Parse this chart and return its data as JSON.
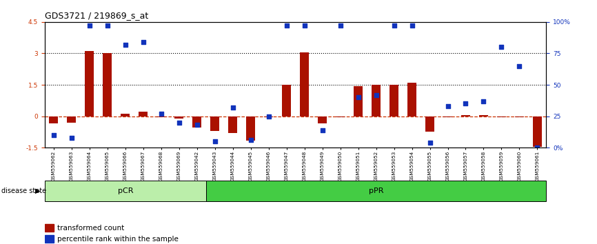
{
  "title": "GDS3721 / 219869_s_at",
  "samples": [
    "GSM559062",
    "GSM559063",
    "GSM559064",
    "GSM559065",
    "GSM559066",
    "GSM559067",
    "GSM559068",
    "GSM559069",
    "GSM559042",
    "GSM559043",
    "GSM559044",
    "GSM559045",
    "GSM559046",
    "GSM559047",
    "GSM559048",
    "GSM559049",
    "GSM559050",
    "GSM559051",
    "GSM559052",
    "GSM559053",
    "GSM559054",
    "GSM559055",
    "GSM559056",
    "GSM559057",
    "GSM559058",
    "GSM559059",
    "GSM559060",
    "GSM559061"
  ],
  "transformed_count": [
    -0.35,
    -0.3,
    3.1,
    3.0,
    0.12,
    0.22,
    -0.05,
    -0.1,
    -0.55,
    -0.7,
    -0.8,
    -1.15,
    -0.05,
    1.5,
    3.05,
    -0.35,
    -0.05,
    1.45,
    1.5,
    1.5,
    1.6,
    -0.75,
    -0.05,
    0.06,
    0.06,
    -0.05,
    -0.05,
    -1.45
  ],
  "percentile_rank": [
    10,
    8,
    97,
    97,
    82,
    84,
    27,
    20,
    18,
    5,
    32,
    6,
    25,
    97,
    97,
    14,
    97,
    40,
    42,
    97,
    97,
    4,
    33,
    35,
    37,
    80,
    65,
    0
  ],
  "pCR_count": 9,
  "ylim_left": [
    -1.5,
    4.5
  ],
  "ylim_right": [
    0,
    100
  ],
  "yticks_left": [
    -1.5,
    0.0,
    1.5,
    3.0,
    4.5
  ],
  "ytick_labels_left": [
    "-1.5",
    "0",
    "1.5",
    "3",
    "4.5"
  ],
  "yticks_right": [
    0,
    25,
    50,
    75,
    100
  ],
  "ytick_labels_right": [
    "0%",
    "25",
    "50",
    "75",
    "100%"
  ],
  "hline_zero_color": "#cc3300",
  "hline_zero_style": "dashed",
  "hline_1p5_color": "black",
  "hline_3_color": "black",
  "bar_color": "#aa1100",
  "dot_color": "#1133bb",
  "pCR_color": "#bbeeaa",
  "pPR_color": "#44cc44",
  "bar_width": 0.5,
  "dot_size": 18,
  "legend_bar_label": "transformed count",
  "legend_dot_label": "percentile rank within the sample",
  "disease_state_label": "disease state",
  "pCR_label": "pCR",
  "pPR_label": "pPR",
  "tick_fontsize": 6.5,
  "title_fontsize": 9
}
